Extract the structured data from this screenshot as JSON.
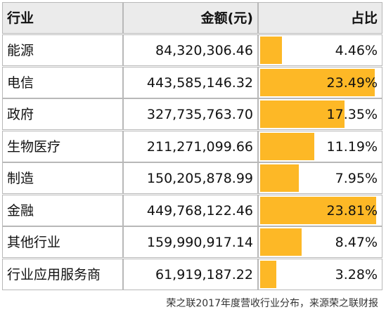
{
  "chart_data": {
    "type": "table",
    "columns": [
      "行业",
      "金额(元)",
      "占比"
    ],
    "rows": [
      {
        "industry": "能源",
        "amount": "84,320,306.46",
        "share_label": "4.46%",
        "share": 4.46
      },
      {
        "industry": "电信",
        "amount": "443,585,146.32",
        "share_label": "23.49%",
        "share": 23.49
      },
      {
        "industry": "政府",
        "amount": "327,735,763.70",
        "share_label": "17.35%",
        "share": 17.35
      },
      {
        "industry": "生物医疗",
        "amount": "211,271,099.66",
        "share_label": "11.19%",
        "share": 11.19
      },
      {
        "industry": "制造",
        "amount": "150,205,878.99",
        "share_label": "7.95%",
        "share": 7.95
      },
      {
        "industry": "金融",
        "amount": "449,768,122.46",
        "share_label": "23.81%",
        "share": 23.81
      },
      {
        "industry": "其他行业",
        "amount": "159,990,917.14",
        "share_label": "8.47%",
        "share": 8.47
      },
      {
        "industry": "行业应用服务商",
        "amount": "61,919,187.22",
        "share_label": "3.28%",
        "share": 3.28
      }
    ],
    "bar_scale_max": 25.0,
    "bar_color": "#fdb826",
    "header_color": "#ebebeb",
    "caption": "荣之联2017年度营收行业分布，来源荣之联财报"
  }
}
